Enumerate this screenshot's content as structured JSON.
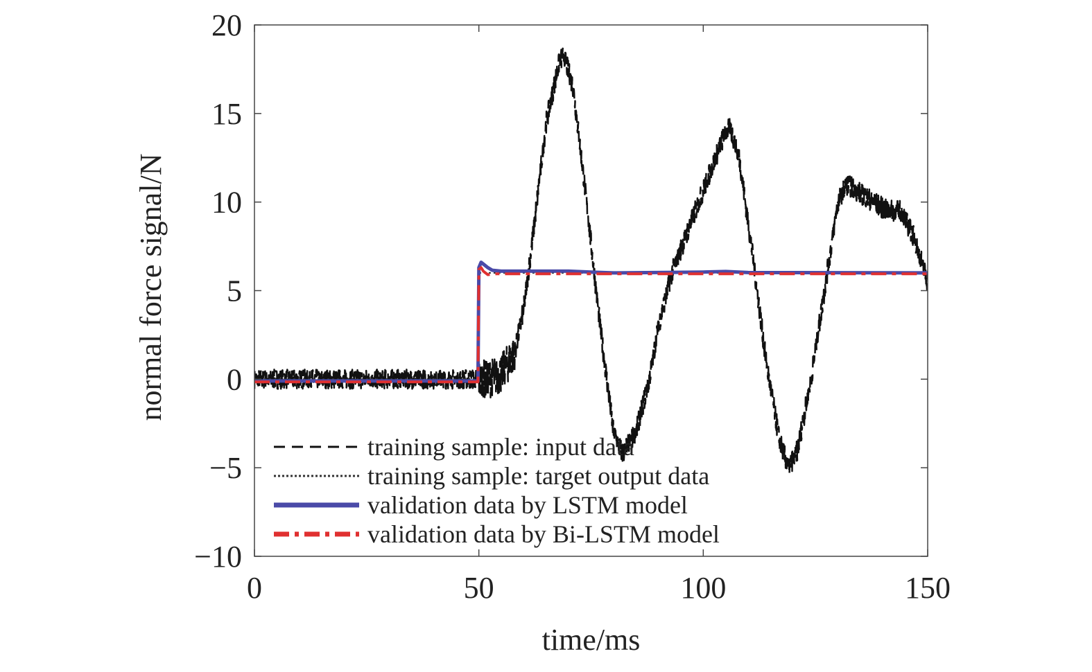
{
  "chart_data": {
    "type": "line",
    "xlabel": "time/ms",
    "ylabel": "normal force signal/N",
    "xlim": [
      0,
      150
    ],
    "ylim": [
      -10,
      20
    ],
    "xticks": [
      0,
      50,
      100,
      150
    ],
    "yticks": [
      -10,
      -5,
      0,
      5,
      10,
      15,
      20
    ],
    "xtick_labels": [
      "0",
      "50",
      "100",
      "150"
    ],
    "ytick_labels": [
      "−10",
      "−5",
      "0",
      "5",
      "10",
      "15",
      "20"
    ],
    "grid": false,
    "legend_position": "bottom-left",
    "series": [
      {
        "name": "training sample: input data",
        "color": "#111111",
        "style": "dashed",
        "x": [
          0,
          10,
          20,
          30,
          40,
          50,
          52,
          55,
          58,
          60,
          62,
          65,
          68,
          69,
          71,
          74,
          77,
          80,
          82,
          85,
          88,
          90,
          93,
          96,
          99,
          102,
          105,
          106,
          108,
          111,
          114,
          117,
          119,
          121,
          124,
          127,
          130,
          132,
          135,
          138,
          141,
          144,
          147,
          150
        ],
        "y": [
          0,
          0,
          0,
          0,
          0,
          0,
          0,
          0.3,
          1.5,
          4,
          8,
          14.5,
          18,
          18.2,
          16.5,
          10,
          3,
          -3,
          -4.2,
          -3,
          0,
          3,
          6,
          8,
          10,
          12,
          14,
          14.2,
          12.5,
          7,
          1,
          -3.5,
          -5,
          -4,
          0,
          5,
          10,
          11,
          10.5,
          10,
          9.5,
          9.5,
          8,
          5.5
        ]
      },
      {
        "name": "training sample: target output data",
        "color": "#333333",
        "style": "dotted",
        "x": [
          0,
          49.8,
          50,
          150
        ],
        "y": [
          0,
          0,
          6,
          6
        ]
      },
      {
        "name": "validation data by LSTM model",
        "color": "#4a4aa8",
        "style": "solid",
        "x": [
          0,
          49.8,
          50,
          50.5,
          51,
          52,
          53,
          55,
          70,
          75,
          80,
          100,
          105,
          110,
          150
        ],
        "y": [
          -0.1,
          -0.1,
          6.3,
          6.6,
          6.5,
          6.3,
          6.15,
          6.1,
          6.1,
          6.05,
          6,
          6.05,
          6.08,
          6.02,
          6
        ]
      },
      {
        "name": "validation data by Bi-LSTM model",
        "color": "#e03030",
        "style": "dashdot",
        "x": [
          0,
          49.8,
          50,
          50.5,
          51,
          52,
          54,
          150
        ],
        "y": [
          -0.15,
          -0.15,
          6.2,
          6.3,
          6.1,
          5.9,
          5.95,
          5.95
        ]
      }
    ]
  }
}
